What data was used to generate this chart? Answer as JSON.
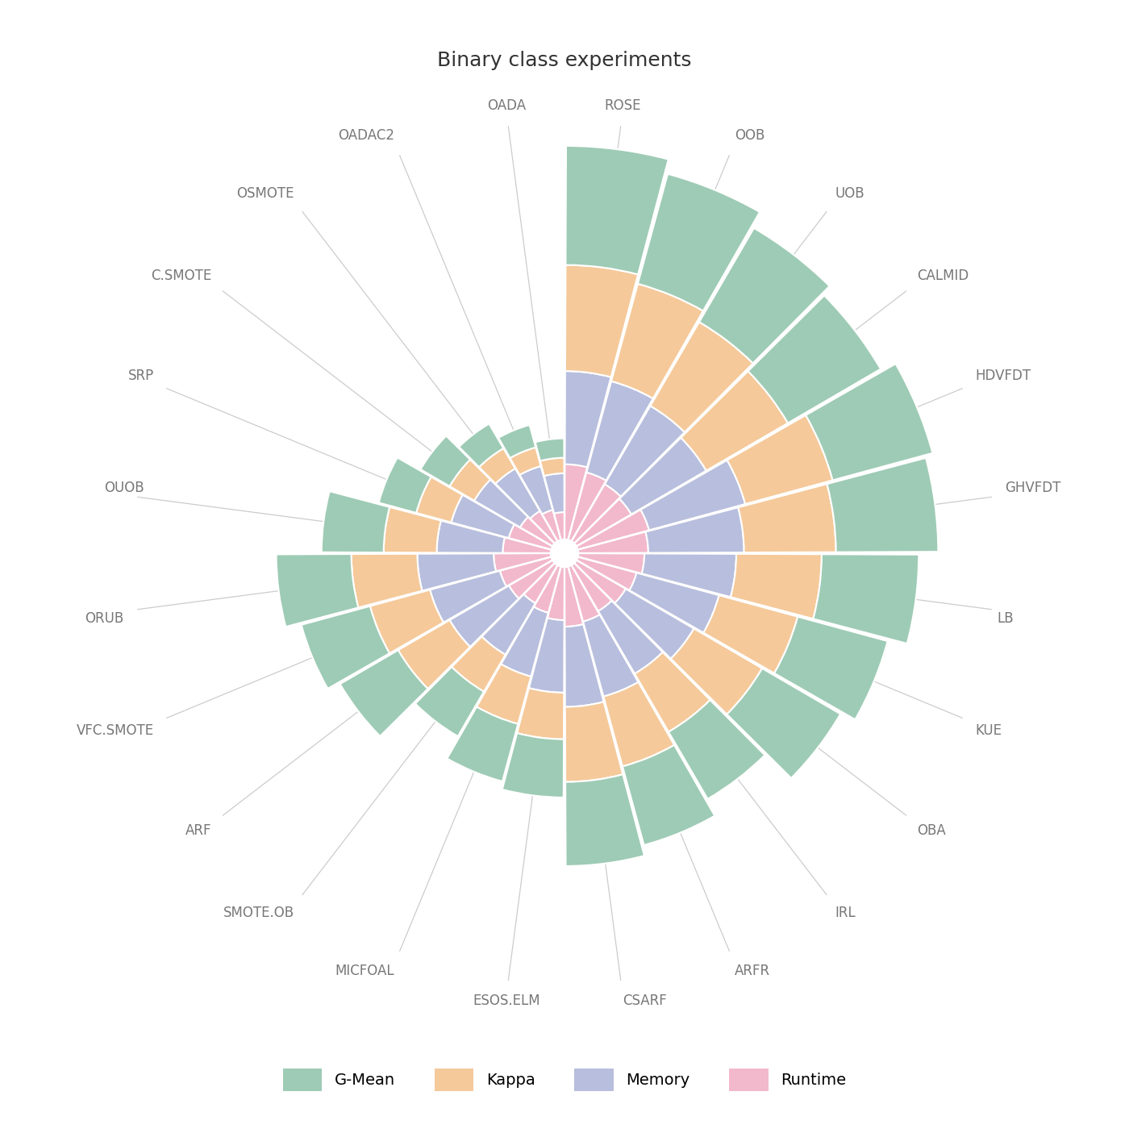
{
  "title": "Binary class experiments",
  "title_fontsize": 18,
  "labels": [
    "ROSE",
    "OOB",
    "UOB",
    "CALMID",
    "HDVFDT",
    "GHVFDT",
    "LB",
    "KUE",
    "OBA",
    "IRL",
    "ARFR",
    "CSARF",
    "ESOS.ELM",
    "MICFOAL",
    "SMOTE.OB",
    "ARF",
    "VFC.SMOTE",
    "ORUB",
    "OUOB",
    "SRP",
    "C.SMOTE",
    "OSMOTE",
    "OADAC2",
    "OADA"
  ],
  "n_categories": 24,
  "metrics": [
    "G-Mean",
    "Kappa",
    "Memory",
    "Runtime"
  ],
  "colors": [
    "#9ecbb5",
    "#f5c99a",
    "#b8bedd",
    "#f2b8cc"
  ],
  "gmean": [
    0.92,
    0.88,
    0.84,
    0.83,
    0.8,
    0.79,
    0.75,
    0.72,
    0.7,
    0.6,
    0.63,
    0.65,
    0.45,
    0.46,
    0.4,
    0.52,
    0.55,
    0.58,
    0.48,
    0.3,
    0.26,
    0.22,
    0.18,
    0.15
  ],
  "kappa": [
    0.82,
    0.78,
    0.75,
    0.73,
    0.7,
    0.71,
    0.66,
    0.63,
    0.61,
    0.52,
    0.56,
    0.58,
    0.36,
    0.38,
    0.33,
    0.46,
    0.48,
    0.51,
    0.41,
    0.28,
    0.22,
    0.18,
    0.15,
    0.12
  ],
  "memory": [
    0.72,
    0.73,
    0.7,
    0.67,
    0.77,
    0.74,
    0.71,
    0.66,
    0.61,
    0.56,
    0.6,
    0.62,
    0.56,
    0.51,
    0.46,
    0.53,
    0.56,
    0.59,
    0.51,
    0.46,
    0.41,
    0.38,
    0.35,
    0.3
  ],
  "runtime": [
    0.58,
    0.54,
    0.51,
    0.49,
    0.57,
    0.54,
    0.51,
    0.47,
    0.44,
    0.41,
    0.44,
    0.46,
    0.41,
    0.37,
    0.34,
    0.39,
    0.41,
    0.44,
    0.37,
    0.34,
    0.29,
    0.27,
    0.24,
    0.21
  ],
  "label_color": "#777777",
  "label_fontsize": 12,
  "guide_line_color": "#cccccc",
  "line_color": "#ffffff",
  "line_width": 1.5
}
